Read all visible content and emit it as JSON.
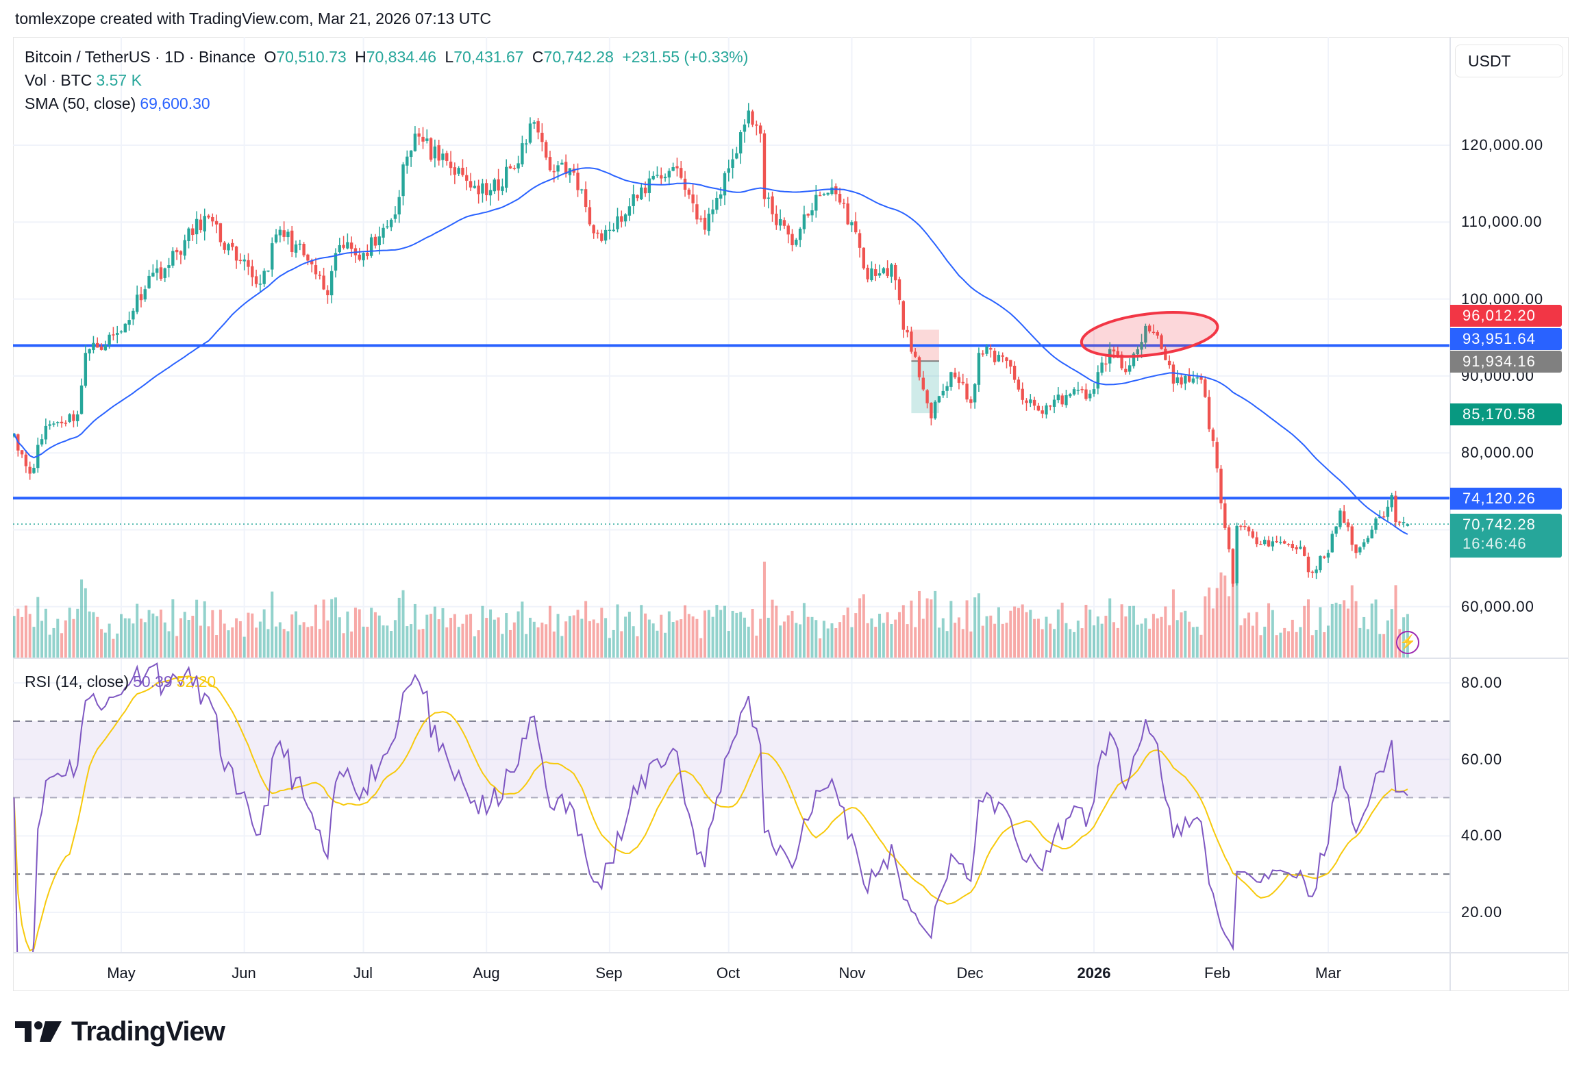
{
  "header": {
    "title": "tomlexzope created with TradingView.com, Mar 21, 2026 07:13 UTC"
  },
  "legend": {
    "symbol": "Bitcoin / TetherUS · 1D · Binance",
    "o_label": "O",
    "open": "70,510.73",
    "h_label": "H",
    "high": "70,834.46",
    "l_label": "L",
    "low": "70,431.67",
    "c_label": "C",
    "close": "70,742.28",
    "change": "+231.55 (+0.33%)",
    "vol_label": "Vol · BTC",
    "vol_value": "3.57 K",
    "sma_label": "SMA (50, close)",
    "sma_value": "69,600.30",
    "rsi_label": "RSI (14, close)",
    "rsi_value": "50.39",
    "rsi_ma_value": "52.20"
  },
  "currency_button": "USDT",
  "price_axis": [
    "120,000.00",
    "110,000.00",
    "100,000.00",
    "90,000.00",
    "80,000.00",
    "60,000.00"
  ],
  "rsi_axis": [
    "80.00",
    "60.00",
    "40.00",
    "20.00"
  ],
  "price_tags": [
    {
      "value": "96,012.20",
      "color": "#f23645"
    },
    {
      "value": "93,951.64",
      "color": "#2962ff"
    },
    {
      "value": "91,934.16",
      "color": "#808080"
    },
    {
      "value": "85,170.58",
      "color": "#089981"
    },
    {
      "value": "74,120.26",
      "color": "#2962ff"
    },
    {
      "value": "70,742.28",
      "color": "#26a69a",
      "countdown": "16:46:46"
    }
  ],
  "time_axis": [
    "May",
    "Jun",
    "Jul",
    "Aug",
    "Sep",
    "Oct",
    "Nov",
    "Dec",
    "2026",
    "Feb",
    "Mar"
  ],
  "logo": "TradingView",
  "colors": {
    "up": "#26a69a",
    "down": "#ef5350",
    "sma": "#2962ff",
    "rsi": "#7e57c2",
    "rsi_ma": "#f7c90b",
    "hline": "#2962ff",
    "ellipse": "#f23645"
  },
  "icons": {
    "alert": "lightning-bolt-icon"
  },
  "chart_data": {
    "type": "candlestick",
    "symbol": "BTCUSDT",
    "interval": "1D",
    "ylim": [
      53000,
      127000
    ],
    "rsi_ylim": [
      12,
      86
    ],
    "rsi_levels": [
      70,
      50,
      30
    ],
    "last_bar": {
      "open": 70510.73,
      "high": 70834.46,
      "low": 70431.67,
      "close": 70742.28
    },
    "horizontal_lines": [
      93951.64,
      74120.26
    ],
    "short_position": {
      "entry": 91934.16,
      "stop": 96012.2,
      "target": 85170.58
    },
    "closes": [
      [
        "2025-04-04",
        82500
      ],
      [
        "2025-04-08",
        77300
      ],
      [
        "2025-04-12",
        83500
      ],
      [
        "2025-04-20",
        85000
      ],
      [
        "2025-04-22",
        93000
      ],
      [
        "2025-05-01",
        95800
      ],
      [
        "2025-05-08",
        103000
      ],
      [
        "2025-05-12",
        104000
      ],
      [
        "2025-05-22",
        110800
      ],
      [
        "2025-05-30",
        105000
      ],
      [
        "2025-06-05",
        102000
      ],
      [
        "2025-06-10",
        109000
      ],
      [
        "2025-06-17",
        105000
      ],
      [
        "2025-06-22",
        100500
      ],
      [
        "2025-06-25",
        107000
      ],
      [
        "2025-07-01",
        106000
      ],
      [
        "2025-07-09",
        111000
      ],
      [
        "2025-07-11",
        117500
      ],
      [
        "2025-07-14",
        121500
      ],
      [
        "2025-07-20",
        118000
      ],
      [
        "2025-08-01",
        113500
      ],
      [
        "2025-08-08",
        117000
      ],
      [
        "2025-08-13",
        123000
      ],
      [
        "2025-08-18",
        116500
      ],
      [
        "2025-08-22",
        117000
      ],
      [
        "2025-08-29",
        108500
      ],
      [
        "2025-09-01",
        109000
      ],
      [
        "2025-09-05",
        111000
      ],
      [
        "2025-09-12",
        116000
      ],
      [
        "2025-09-18",
        117000
      ],
      [
        "2025-09-25",
        109000
      ],
      [
        "2025-10-01",
        117000
      ],
      [
        "2025-10-06",
        124500
      ],
      [
        "2025-10-09",
        121500
      ],
      [
        "2025-10-10",
        113000
      ],
      [
        "2025-10-17",
        107000
      ],
      [
        "2025-10-20",
        111000
      ],
      [
        "2025-10-27",
        114500
      ],
      [
        "2025-11-01",
        110000
      ],
      [
        "2025-11-04",
        104000
      ],
      [
        "2025-11-07",
        103000
      ],
      [
        "2025-11-11",
        104500
      ],
      [
        "2025-11-14",
        96000
      ],
      [
        "2025-11-17",
        92500
      ],
      [
        "2025-11-21",
        84500
      ],
      [
        "2025-11-26",
        90500
      ],
      [
        "2025-12-01",
        86500
      ],
      [
        "2025-12-03",
        93000
      ],
      [
        "2025-12-09",
        92500
      ],
      [
        "2025-12-15",
        86500
      ],
      [
        "2025-12-18",
        85500
      ],
      [
        "2025-12-25",
        87500
      ],
      [
        "2025-12-31",
        87700
      ],
      [
        "2026-01-05",
        93500
      ],
      [
        "2026-01-09",
        90500
      ],
      [
        "2026-01-14",
        96500
      ],
      [
        "2026-01-18",
        93500
      ],
      [
        "2026-01-21",
        89000
      ],
      [
        "2026-01-28",
        89500
      ],
      [
        "2026-02-01",
        78000
      ],
      [
        "2026-02-05",
        63000
      ],
      [
        "2026-02-06",
        70500
      ],
      [
        "2026-02-10",
        69000
      ],
      [
        "2026-02-15",
        68500
      ],
      [
        "2026-02-22",
        67800
      ],
      [
        "2026-02-24",
        64500
      ],
      [
        "2026-03-01",
        67000
      ],
      [
        "2026-03-04",
        72500
      ],
      [
        "2026-03-08",
        67000
      ],
      [
        "2026-03-12",
        70000
      ],
      [
        "2026-03-16",
        73000
      ],
      [
        "2026-03-17",
        74500
      ],
      [
        "2026-03-18",
        71000
      ],
      [
        "2026-03-21",
        70742.28
      ]
    ]
  }
}
